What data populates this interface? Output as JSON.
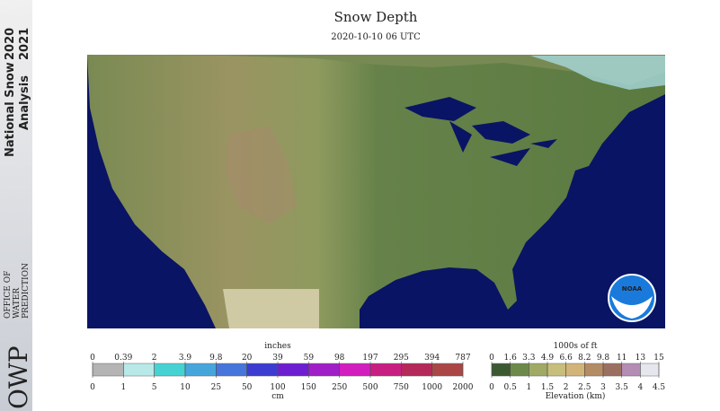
{
  "sidebar": {
    "line1": "National Snow",
    "year1": "2020",
    "line2": "Analysis",
    "year2": "2021",
    "logo": "OWP",
    "office": [
      "OFFICE OF",
      "WATER",
      "PREDICTION"
    ]
  },
  "header": {
    "title": "Snow Depth",
    "subtitle": "2020-10-10 06 UTC"
  },
  "snow_legend": {
    "top_title": "inches",
    "top_labels": [
      0,
      0.39,
      2,
      3.9,
      9.8,
      20,
      39,
      59,
      98,
      197,
      295,
      394,
      787
    ],
    "bottom_labels": [
      0,
      1,
      5,
      10,
      25,
      50,
      100,
      150,
      250,
      500,
      750,
      1000,
      2000
    ],
    "bottom_title": "cm",
    "colors": [
      "#b4b4b4",
      "#b8e8e8",
      "#46d2d2",
      "#46a6dc",
      "#4676dc",
      "#3c3cd2",
      "#6e1ed2",
      "#a01ec8",
      "#d21ebe",
      "#c81e82",
      "#b4285a",
      "#aa4646"
    ]
  },
  "elevation_legend": {
    "top_title": "1000s of ft",
    "top_labels": [
      0,
      1.6,
      3.3,
      4.9,
      6.6,
      8.2,
      9.8,
      11,
      13,
      15
    ],
    "bottom_labels": [
      0,
      0.5,
      1,
      1.5,
      2,
      2.5,
      3,
      3.5,
      4,
      4.5
    ],
    "bottom_title": "Elevation (km)",
    "colors": [
      "#3c5a32",
      "#6e8a4a",
      "#a0aa64",
      "#c8be7c",
      "#d2b478",
      "#b48c64",
      "#9c7060",
      "#b48cb4",
      "#e6e6ee"
    ]
  },
  "logo": {
    "noaa": "NOAA"
  }
}
